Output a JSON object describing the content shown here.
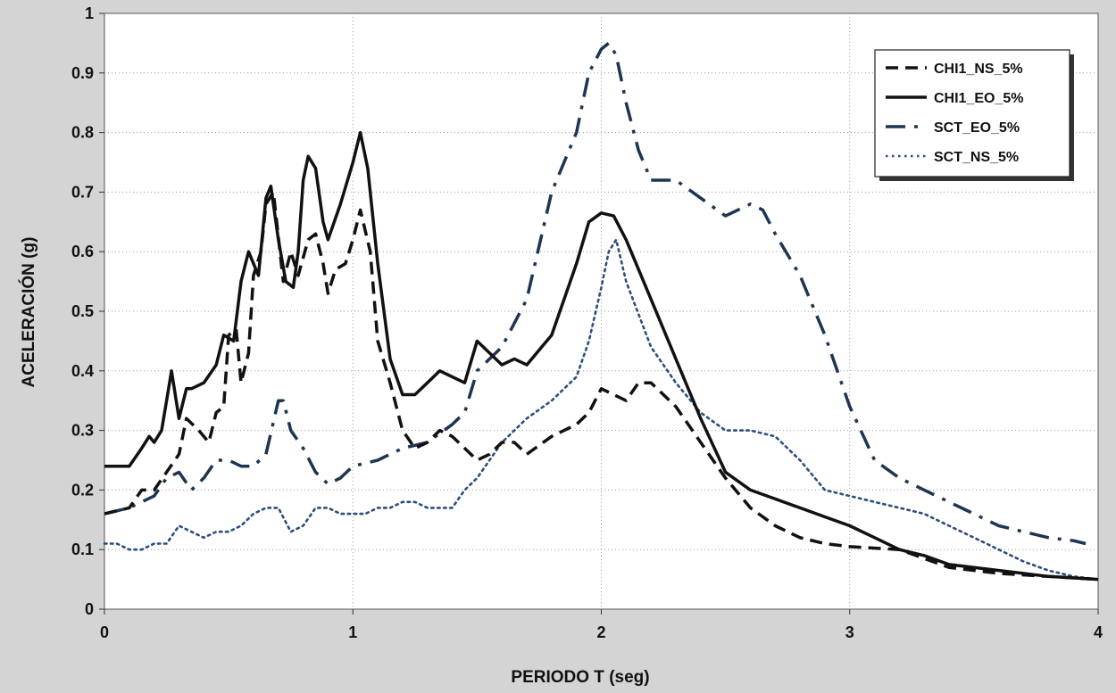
{
  "chart_data": {
    "type": "line",
    "title": "",
    "xlabel": "PERIODO T (seg)",
    "ylabel": "ACELERACIÓN (g)",
    "xlim": [
      0,
      4
    ],
    "ylim": [
      0,
      1
    ],
    "x_ticks": [
      "0",
      "1",
      "2",
      "3",
      "4"
    ],
    "y_ticks": [
      "0",
      "0.1",
      "0.2",
      "0.3",
      "0.4",
      "0.5",
      "0.6",
      "0.7",
      "0.8",
      "0.9",
      "1"
    ],
    "grid": "dotted",
    "legend_position": "top-right",
    "series": [
      {
        "name": "CHI1_NS_5%",
        "style": "dashed",
        "color": "#111111",
        "points": [
          [
            0,
            0.16
          ],
          [
            0.1,
            0.17
          ],
          [
            0.15,
            0.2
          ],
          [
            0.2,
            0.2
          ],
          [
            0.25,
            0.23
          ],
          [
            0.3,
            0.26
          ],
          [
            0.33,
            0.32
          ],
          [
            0.38,
            0.3
          ],
          [
            0.42,
            0.28
          ],
          [
            0.45,
            0.33
          ],
          [
            0.48,
            0.34
          ],
          [
            0.5,
            0.46
          ],
          [
            0.53,
            0.47
          ],
          [
            0.55,
            0.38
          ],
          [
            0.58,
            0.43
          ],
          [
            0.6,
            0.56
          ],
          [
            0.63,
            0.6
          ],
          [
            0.65,
            0.68
          ],
          [
            0.68,
            0.7
          ],
          [
            0.72,
            0.55
          ],
          [
            0.75,
            0.6
          ],
          [
            0.78,
            0.56
          ],
          [
            0.82,
            0.62
          ],
          [
            0.85,
            0.63
          ],
          [
            0.88,
            0.58
          ],
          [
            0.9,
            0.53
          ],
          [
            0.93,
            0.57
          ],
          [
            0.97,
            0.58
          ],
          [
            1.0,
            0.62
          ],
          [
            1.03,
            0.67
          ],
          [
            1.07,
            0.6
          ],
          [
            1.1,
            0.45
          ],
          [
            1.15,
            0.38
          ],
          [
            1.2,
            0.3
          ],
          [
            1.25,
            0.27
          ],
          [
            1.3,
            0.28
          ],
          [
            1.35,
            0.3
          ],
          [
            1.4,
            0.29
          ],
          [
            1.45,
            0.27
          ],
          [
            1.5,
            0.25
          ],
          [
            1.55,
            0.26
          ],
          [
            1.6,
            0.28
          ],
          [
            1.65,
            0.28
          ],
          [
            1.7,
            0.26
          ],
          [
            1.8,
            0.29
          ],
          [
            1.9,
            0.31
          ],
          [
            1.95,
            0.33
          ],
          [
            2.0,
            0.37
          ],
          [
            2.05,
            0.36
          ],
          [
            2.1,
            0.35
          ],
          [
            2.15,
            0.38
          ],
          [
            2.2,
            0.38
          ],
          [
            2.3,
            0.34
          ],
          [
            2.4,
            0.28
          ],
          [
            2.5,
            0.22
          ],
          [
            2.6,
            0.17
          ],
          [
            2.7,
            0.14
          ],
          [
            2.8,
            0.12
          ],
          [
            2.9,
            0.11
          ],
          [
            3.0,
            0.105
          ],
          [
            3.2,
            0.1
          ],
          [
            3.4,
            0.07
          ],
          [
            3.6,
            0.06
          ],
          [
            3.8,
            0.055
          ],
          [
            4.0,
            0.05
          ]
        ]
      },
      {
        "name": "CHI1_EO_5%",
        "style": "solid",
        "color": "#111111",
        "points": [
          [
            0,
            0.24
          ],
          [
            0.1,
            0.24
          ],
          [
            0.15,
            0.27
          ],
          [
            0.18,
            0.29
          ],
          [
            0.2,
            0.28
          ],
          [
            0.23,
            0.3
          ],
          [
            0.25,
            0.35
          ],
          [
            0.27,
            0.4
          ],
          [
            0.3,
            0.32
          ],
          [
            0.33,
            0.37
          ],
          [
            0.35,
            0.37
          ],
          [
            0.4,
            0.38
          ],
          [
            0.45,
            0.41
          ],
          [
            0.48,
            0.46
          ],
          [
            0.52,
            0.45
          ],
          [
            0.55,
            0.55
          ],
          [
            0.58,
            0.6
          ],
          [
            0.62,
            0.56
          ],
          [
            0.65,
            0.69
          ],
          [
            0.67,
            0.71
          ],
          [
            0.7,
            0.62
          ],
          [
            0.73,
            0.55
          ],
          [
            0.76,
            0.54
          ],
          [
            0.78,
            0.6
          ],
          [
            0.8,
            0.72
          ],
          [
            0.82,
            0.76
          ],
          [
            0.85,
            0.74
          ],
          [
            0.88,
            0.65
          ],
          [
            0.9,
            0.62
          ],
          [
            0.95,
            0.68
          ],
          [
            1.0,
            0.75
          ],
          [
            1.03,
            0.8
          ],
          [
            1.06,
            0.74
          ],
          [
            1.1,
            0.58
          ],
          [
            1.15,
            0.42
          ],
          [
            1.2,
            0.36
          ],
          [
            1.25,
            0.36
          ],
          [
            1.3,
            0.38
          ],
          [
            1.35,
            0.4
          ],
          [
            1.4,
            0.39
          ],
          [
            1.45,
            0.38
          ],
          [
            1.5,
            0.45
          ],
          [
            1.55,
            0.43
          ],
          [
            1.6,
            0.41
          ],
          [
            1.65,
            0.42
          ],
          [
            1.7,
            0.41
          ],
          [
            1.8,
            0.46
          ],
          [
            1.9,
            0.58
          ],
          [
            1.95,
            0.65
          ],
          [
            2.0,
            0.665
          ],
          [
            2.05,
            0.66
          ],
          [
            2.1,
            0.62
          ],
          [
            2.2,
            0.52
          ],
          [
            2.3,
            0.42
          ],
          [
            2.4,
            0.32
          ],
          [
            2.5,
            0.23
          ],
          [
            2.6,
            0.2
          ],
          [
            2.7,
            0.185
          ],
          [
            2.8,
            0.17
          ],
          [
            2.9,
            0.155
          ],
          [
            3.0,
            0.14
          ],
          [
            3.1,
            0.12
          ],
          [
            3.2,
            0.1
          ],
          [
            3.3,
            0.09
          ],
          [
            3.4,
            0.075
          ],
          [
            3.6,
            0.065
          ],
          [
            3.8,
            0.055
          ],
          [
            4.0,
            0.05
          ]
        ]
      },
      {
        "name": "SCT_EO_5%",
        "style": "dashdot",
        "color": "#1e3552",
        "points": [
          [
            0,
            0.16
          ],
          [
            0.1,
            0.17
          ],
          [
            0.15,
            0.18
          ],
          [
            0.2,
            0.19
          ],
          [
            0.25,
            0.22
          ],
          [
            0.3,
            0.23
          ],
          [
            0.35,
            0.2
          ],
          [
            0.4,
            0.22
          ],
          [
            0.45,
            0.25
          ],
          [
            0.5,
            0.25
          ],
          [
            0.55,
            0.24
          ],
          [
            0.6,
            0.24
          ],
          [
            0.65,
            0.26
          ],
          [
            0.7,
            0.35
          ],
          [
            0.72,
            0.35
          ],
          [
            0.75,
            0.3
          ],
          [
            0.8,
            0.27
          ],
          [
            0.85,
            0.23
          ],
          [
            0.9,
            0.21
          ],
          [
            0.95,
            0.22
          ],
          [
            1.0,
            0.24
          ],
          [
            1.1,
            0.25
          ],
          [
            1.2,
            0.27
          ],
          [
            1.3,
            0.28
          ],
          [
            1.4,
            0.31
          ],
          [
            1.45,
            0.33
          ],
          [
            1.5,
            0.4
          ],
          [
            1.6,
            0.44
          ],
          [
            1.7,
            0.52
          ],
          [
            1.8,
            0.7
          ],
          [
            1.9,
            0.8
          ],
          [
            1.95,
            0.9
          ],
          [
            2.0,
            0.94
          ],
          [
            2.03,
            0.95
          ],
          [
            2.06,
            0.93
          ],
          [
            2.1,
            0.85
          ],
          [
            2.15,
            0.77
          ],
          [
            2.2,
            0.72
          ],
          [
            2.3,
            0.72
          ],
          [
            2.4,
            0.69
          ],
          [
            2.5,
            0.66
          ],
          [
            2.6,
            0.68
          ],
          [
            2.65,
            0.67
          ],
          [
            2.7,
            0.63
          ],
          [
            2.8,
            0.56
          ],
          [
            2.9,
            0.46
          ],
          [
            3.0,
            0.34
          ],
          [
            3.1,
            0.25
          ],
          [
            3.2,
            0.22
          ],
          [
            3.3,
            0.2
          ],
          [
            3.4,
            0.18
          ],
          [
            3.5,
            0.16
          ],
          [
            3.6,
            0.14
          ],
          [
            3.7,
            0.13
          ],
          [
            3.8,
            0.12
          ],
          [
            3.9,
            0.115
          ],
          [
            3.95,
            0.11
          ]
        ]
      },
      {
        "name": "SCT_NS_5%",
        "style": "dotted",
        "color": "#2d4f7c",
        "points": [
          [
            0,
            0.11
          ],
          [
            0.05,
            0.11
          ],
          [
            0.1,
            0.1
          ],
          [
            0.15,
            0.1
          ],
          [
            0.2,
            0.11
          ],
          [
            0.25,
            0.11
          ],
          [
            0.3,
            0.14
          ],
          [
            0.35,
            0.13
          ],
          [
            0.4,
            0.12
          ],
          [
            0.45,
            0.13
          ],
          [
            0.5,
            0.13
          ],
          [
            0.55,
            0.14
          ],
          [
            0.6,
            0.16
          ],
          [
            0.65,
            0.17
          ],
          [
            0.7,
            0.17
          ],
          [
            0.75,
            0.13
          ],
          [
            0.8,
            0.14
          ],
          [
            0.85,
            0.17
          ],
          [
            0.9,
            0.17
          ],
          [
            0.95,
            0.16
          ],
          [
            1.0,
            0.16
          ],
          [
            1.05,
            0.16
          ],
          [
            1.1,
            0.17
          ],
          [
            1.15,
            0.17
          ],
          [
            1.2,
            0.18
          ],
          [
            1.25,
            0.18
          ],
          [
            1.3,
            0.17
          ],
          [
            1.35,
            0.17
          ],
          [
            1.4,
            0.17
          ],
          [
            1.45,
            0.2
          ],
          [
            1.5,
            0.22
          ],
          [
            1.55,
            0.25
          ],
          [
            1.6,
            0.28
          ],
          [
            1.7,
            0.32
          ],
          [
            1.8,
            0.35
          ],
          [
            1.9,
            0.39
          ],
          [
            1.95,
            0.45
          ],
          [
            2.0,
            0.54
          ],
          [
            2.03,
            0.6
          ],
          [
            2.06,
            0.62
          ],
          [
            2.1,
            0.55
          ],
          [
            2.2,
            0.44
          ],
          [
            2.3,
            0.38
          ],
          [
            2.4,
            0.33
          ],
          [
            2.5,
            0.3
          ],
          [
            2.6,
            0.3
          ],
          [
            2.7,
            0.29
          ],
          [
            2.8,
            0.25
          ],
          [
            2.9,
            0.2
          ],
          [
            3.0,
            0.19
          ],
          [
            3.1,
            0.18
          ],
          [
            3.2,
            0.17
          ],
          [
            3.3,
            0.16
          ],
          [
            3.4,
            0.14
          ],
          [
            3.5,
            0.12
          ],
          [
            3.6,
            0.1
          ],
          [
            3.7,
            0.08
          ],
          [
            3.8,
            0.065
          ],
          [
            3.9,
            0.055
          ],
          [
            4.0,
            0.05
          ]
        ]
      }
    ]
  }
}
